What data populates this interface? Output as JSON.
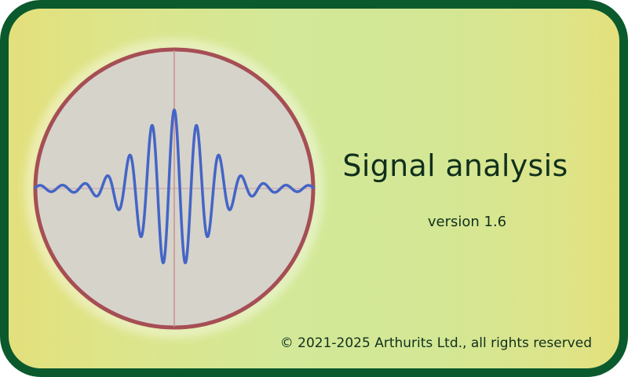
{
  "app": {
    "title": "Signal analysis",
    "version": "version 1.6",
    "copyright": "© 2021-2025 Arthurits Ltd., all rights reserved"
  },
  "logo": {
    "icon": "oscilloscope-waveform-icon",
    "screen_color": "#d6d3cb",
    "ring_color": "#a64e55",
    "crosshair_color": "#c89191",
    "wave_color": "#4465c6"
  },
  "colors": {
    "border": "#0b5a2e",
    "text": "#10301c"
  }
}
